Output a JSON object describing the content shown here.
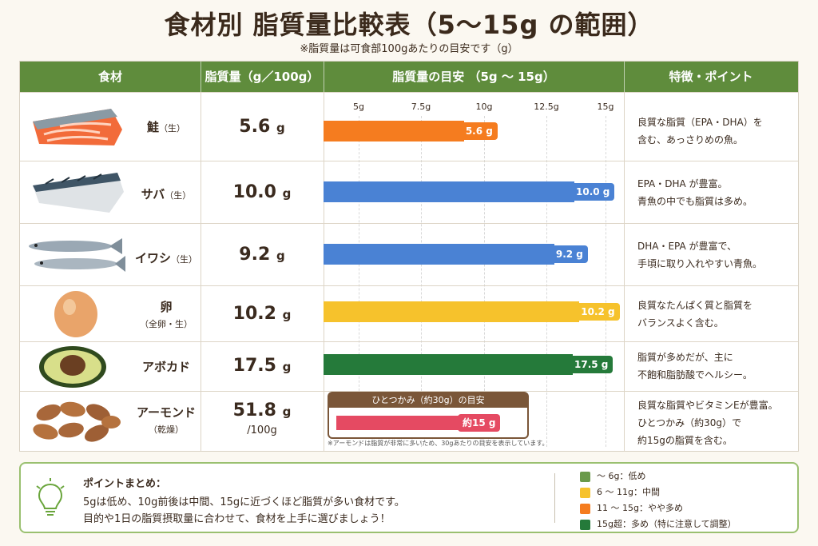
{
  "title": "食材別 脂質量比較表（5～15g の範囲）",
  "subtitle": "※脂質量は可食部100gあたりの目安です（g）",
  "headers": [
    "食材",
    "脂質量（g／100g）",
    "脂質量の目安 （5g ～ 15g）",
    "特徴・ポイント"
  ],
  "ticks": [
    "5g",
    "7.5g",
    "10g",
    "12.5g",
    "15g"
  ],
  "colors": {
    "header_green": "#5f8c3c",
    "orange": "#f57c1f",
    "blue": "#4a82d4",
    "yellow": "#f6c22c",
    "dark_green": "#257a3a",
    "pink": "#e54a62",
    "brown": "#7a5638"
  },
  "rows": [
    {
      "name": "鮭",
      "sub": "（生）",
      "icon": "salmon-image",
      "value_num": "5.6",
      "unit": "g",
      "per": "",
      "bar_label": "5.6 g",
      "bar_value": 5.6,
      "color": "#f57c1f",
      "note1": "良質な脂質（EPA・DHA）を",
      "note2": "含む、あっさりめの魚。"
    },
    {
      "name": "サバ",
      "sub": "（生）",
      "icon": "mackerel-image",
      "value_num": "10.0",
      "unit": "g",
      "per": "",
      "bar_label": "10.0 g",
      "bar_value": 10.0,
      "color": "#4a82d4",
      "note1": "EPA・DHA が豊富。",
      "note2": "青魚の中でも脂質は多め。"
    },
    {
      "name": "イワシ",
      "sub": "（生）",
      "icon": "sardine-image",
      "value_num": "9.2",
      "unit": "g",
      "per": "",
      "bar_label": "9.2 g",
      "bar_value": 9.2,
      "color": "#4a82d4",
      "note1": "DHA・EPA が豊富で、",
      "note2": "手頃に取り入れやすい青魚。"
    },
    {
      "name": "卵",
      "sub": "（全卵・生）",
      "icon": "egg-image",
      "value_num": "10.2",
      "unit": "g",
      "per": "",
      "bar_label": "10.2 g",
      "bar_value": 10.2,
      "color": "#f6c22c",
      "note1": "良質なたんぱく質と脂質を",
      "note2": "バランスよく含む。"
    },
    {
      "name": "アボカド",
      "sub": "",
      "icon": "avocado-image",
      "value_num": "17.5",
      "unit": "g",
      "per": "",
      "bar_label": "17.5 g",
      "bar_value": 17.5,
      "color": "#257a3a",
      "note1": "脂質が多めだが、主に",
      "note2": "不飽和脂肪酸でヘルシー。"
    },
    {
      "name": "アーモンド",
      "sub": "（乾燥）",
      "icon": "almond-image",
      "value_num": "51.8",
      "unit": "g",
      "per": "/100g",
      "bar_label": "約15 g",
      "bar_value": 15,
      "color": "#e54a62",
      "note1": "良質な脂質やビタミンEが豊富。",
      "note2": "ひとつかみ（約30g）で",
      "note3": "約15gの脂質を含む。"
    }
  ],
  "handful_title": "ひとつかみ（約30g）の目安",
  "footnote": "※アーモンドは脂質が非常に多いため、30gあたりの目安を表示しています。",
  "summary": {
    "title": "ポイントまとめ：",
    "line1": "5gは低め、10g前後は中間、15gに近づくほど脂質が多い食材です。",
    "line2": "目的や1日の脂質摂取量に合わせて、食材を上手に選びましょう！"
  },
  "legend": [
    {
      "label": "～ 6g：低め",
      "color": "#6a9a4a"
    },
    {
      "label": "6 ～ 11g：中間",
      "color": "#f6c22c"
    },
    {
      "label": "11 ～ 15g：やや多め",
      "color": "#f57c1f"
    },
    {
      "label": "15g超：多め（特に注意して調整）",
      "color": "#257a3a"
    }
  ]
}
